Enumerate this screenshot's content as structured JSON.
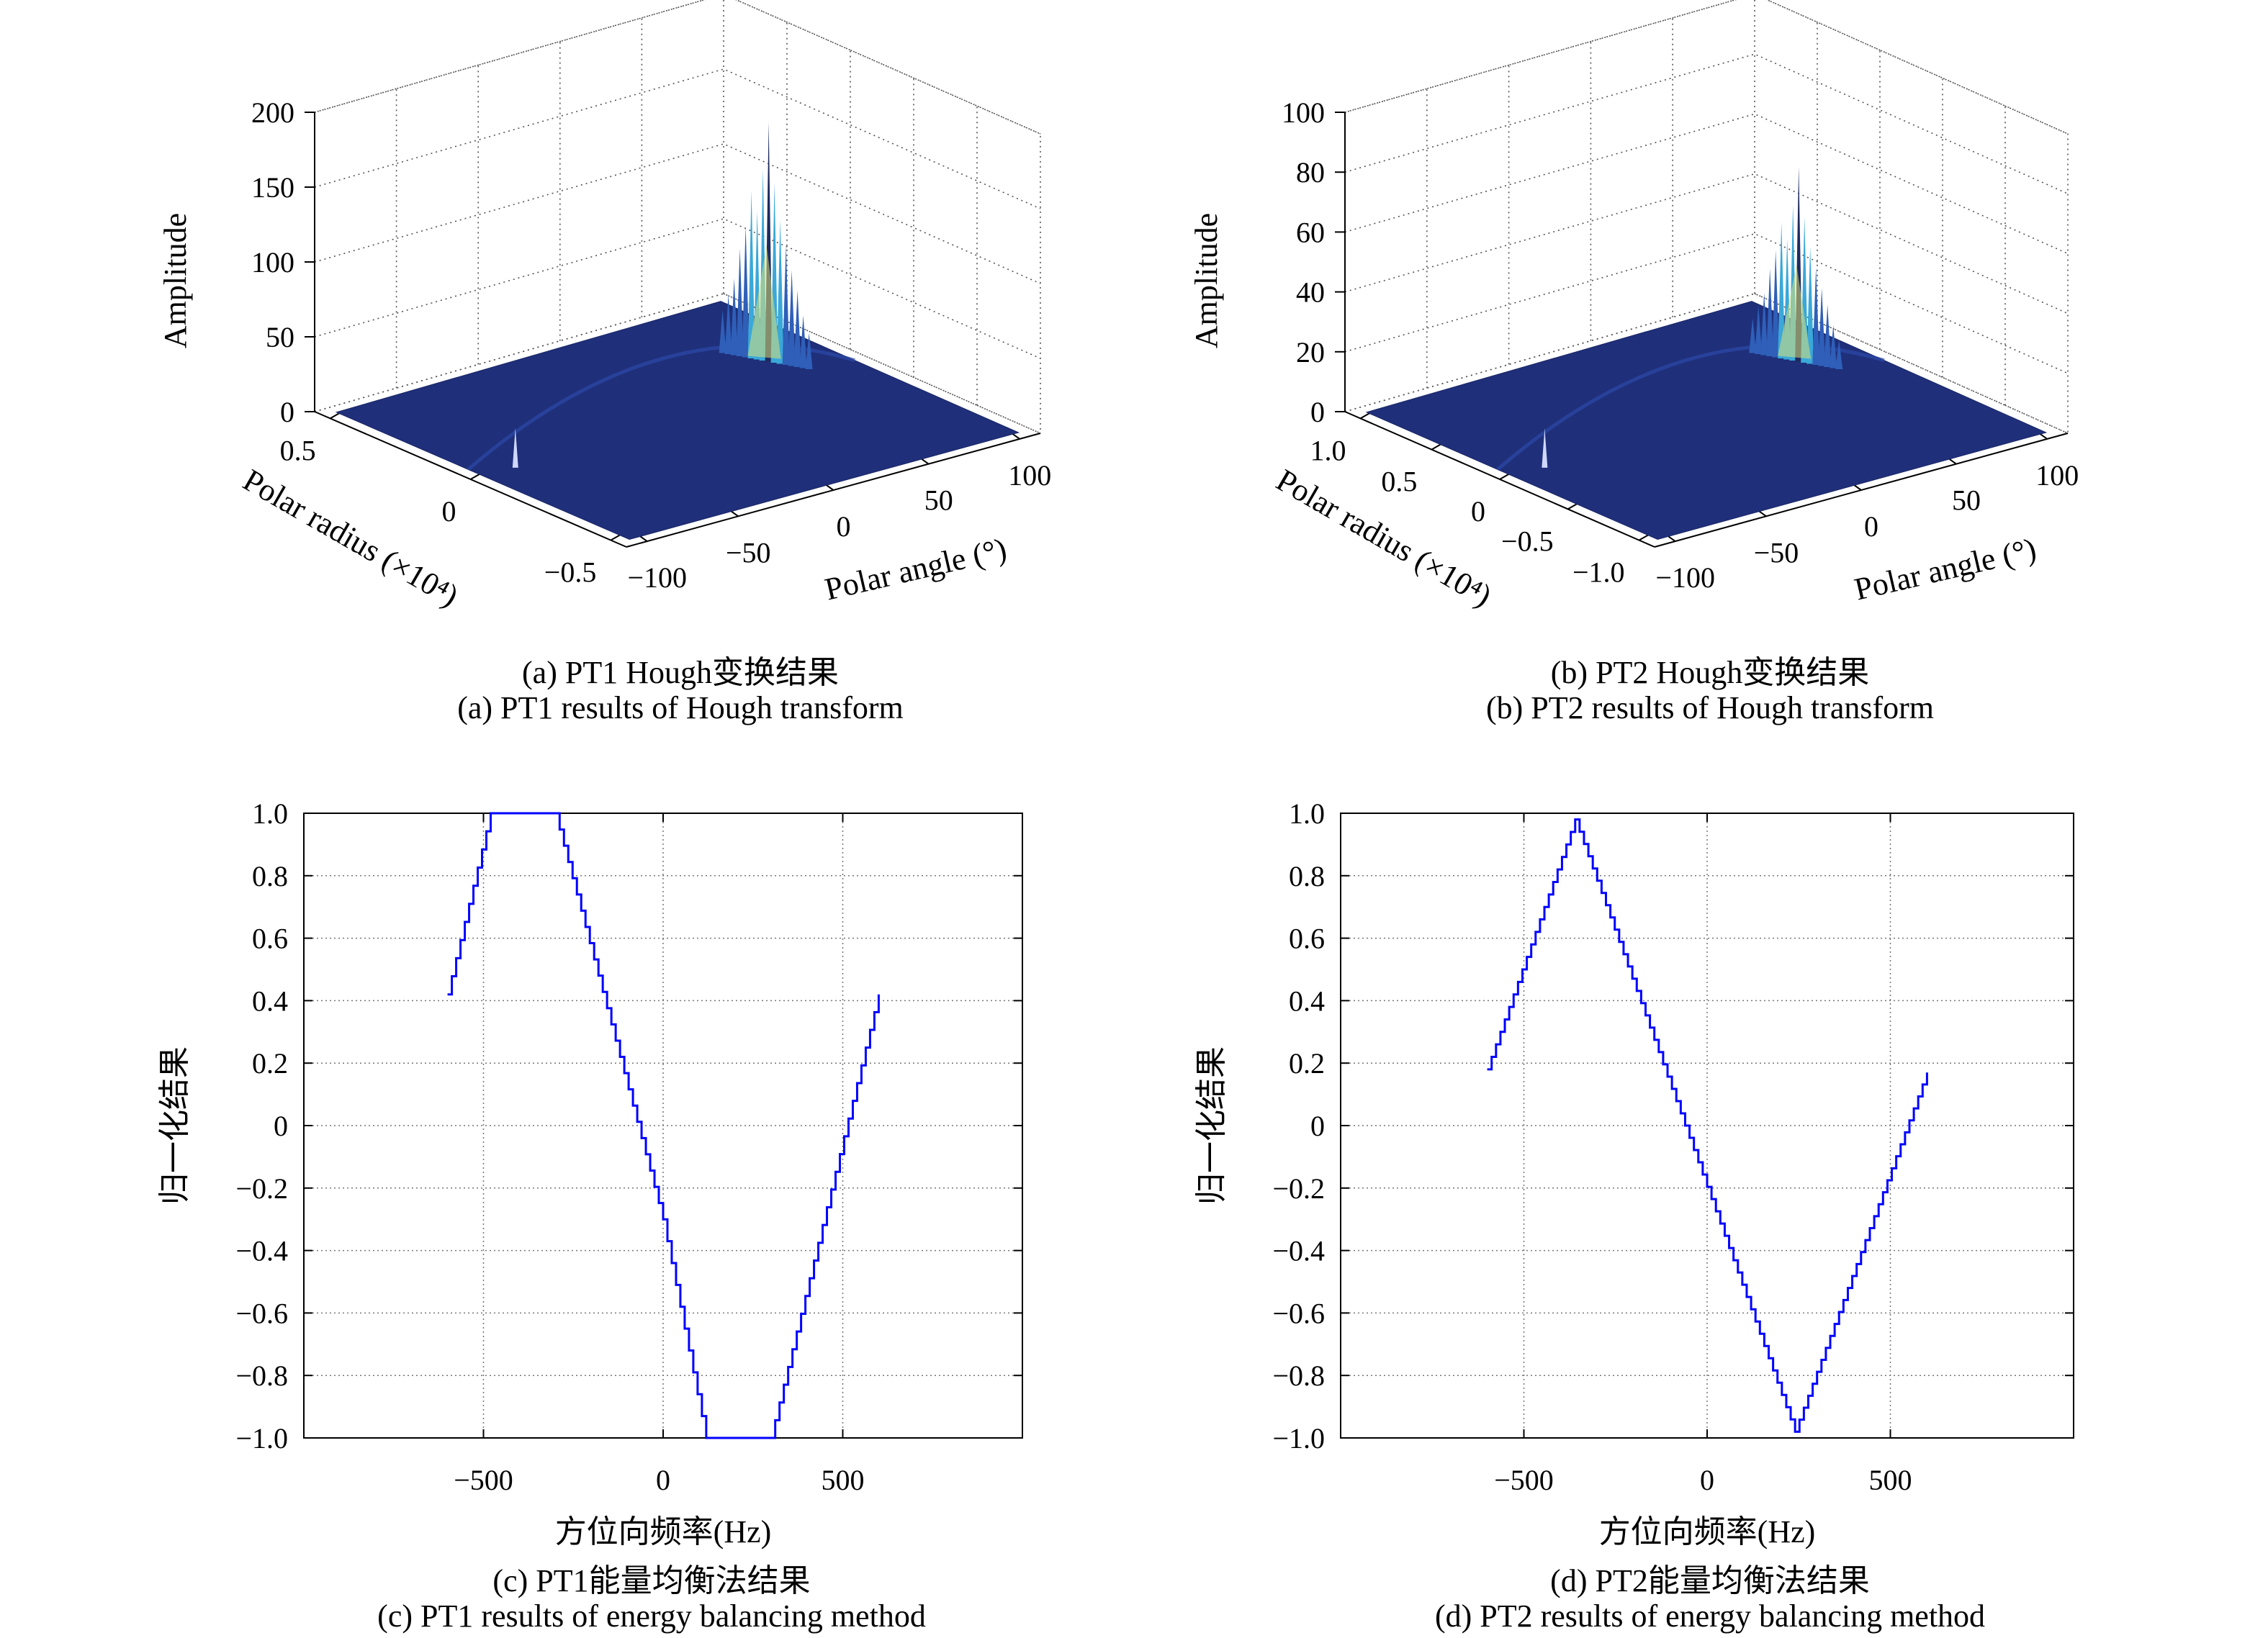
{
  "panels": [
    {
      "id": "a",
      "caption_cn": "(a) PT1 Hough变换结果",
      "caption_en": "(a) PT1 results of Hough transform",
      "chart_data": {
        "type": "surface3d",
        "zlabel": "Amplitude",
        "xlabel": "Polar angle (°)",
        "ylabel": "Polar radius (×10⁴)",
        "zlim": [
          0,
          200
        ],
        "z_ticks": [
          "0",
          "50",
          "100",
          "150",
          "200"
        ],
        "x_ticks": [
          "−100",
          "−50",
          "0",
          "50",
          "100"
        ],
        "y_ticks": [
          "0.5",
          "0",
          "−0.5"
        ],
        "peak": 160,
        "colors": {
          "floor": "#1f2f7a",
          "peak": "#3aa8d8",
          "highlight": "#d8e07a"
        }
      }
    },
    {
      "id": "b",
      "caption_cn": "(b) PT2 Hough变换结果",
      "caption_en": "(b) PT2 results of Hough transform",
      "chart_data": {
        "type": "surface3d",
        "zlabel": "Amplitude",
        "xlabel": "Polar angle (°)",
        "ylabel": "Polar radius (×10⁴)",
        "zlim": [
          0,
          100
        ],
        "z_ticks": [
          "0",
          "20",
          "40",
          "60",
          "80",
          "100"
        ],
        "x_ticks": [
          "−100",
          "−50",
          "0",
          "50",
          "100"
        ],
        "y_ticks": [
          "1.0",
          "0.5",
          "0",
          "−0.5",
          "−1.0"
        ],
        "peak": 65,
        "colors": {
          "floor": "#1f2f7a",
          "peak": "#3aa8d8",
          "highlight": "#d8e07a"
        }
      }
    },
    {
      "id": "c",
      "caption_cn": "(c) PT1能量均衡法结果",
      "caption_en": "(c) PT1 results of energy balancing  method",
      "chart_data": {
        "type": "line",
        "xlabel": "方位向频率(Hz)",
        "ylabel": "归一化结果",
        "xlim": [
          -1000,
          1000
        ],
        "ylim": [
          -1.0,
          1.0
        ],
        "x_ticks": [
          -500,
          0,
          500
        ],
        "x_tick_labels": [
          "−500",
          "0",
          "500"
        ],
        "y_ticks": [
          1.0,
          0.8,
          0.6,
          0.4,
          0.2,
          0,
          -0.2,
          -0.4,
          -0.6,
          -0.8,
          -1.0
        ],
        "y_tick_labels": [
          "1.0",
          "0.8",
          "0.6",
          "0.4",
          "0.2",
          "0",
          "−0.2",
          "−0.4",
          "−0.6",
          "−0.8",
          "−1.0"
        ],
        "grid": true,
        "color": "#0000ff",
        "x": [
          -600,
          -480,
          -300,
          0,
          120,
          300,
          600
        ],
        "y": [
          0.42,
          1.0,
          1.0,
          -0.3,
          -1.0,
          -1.0,
          0.42
        ]
      }
    },
    {
      "id": "d",
      "caption_cn": "(d) PT2能量均衡法结果",
      "caption_en": "(d) PT2 results of energy balancing  method",
      "chart_data": {
        "type": "line",
        "xlabel": "方位向频率(Hz)",
        "ylabel": "归一化结果",
        "xlim": [
          -1000,
          1000
        ],
        "ylim": [
          -1.0,
          1.0
        ],
        "x_ticks": [
          -500,
          0,
          500
        ],
        "x_tick_labels": [
          "−500",
          "0",
          "500"
        ],
        "y_ticks": [
          1.0,
          0.8,
          0.6,
          0.4,
          0.2,
          0,
          -0.2,
          -0.4,
          -0.6,
          -0.8,
          -1.0
        ],
        "y_tick_labels": [
          "1.0",
          "0.8",
          "0.6",
          "0.4",
          "0.2",
          "0",
          "−0.2",
          "−0.4",
          "−0.6",
          "−0.8",
          "−1.0"
        ],
        "grid": true,
        "color": "#0000ff",
        "x": [
          -600,
          -360,
          240,
          600
        ],
        "y": [
          0.18,
          0.98,
          -0.98,
          0.17
        ]
      }
    }
  ]
}
